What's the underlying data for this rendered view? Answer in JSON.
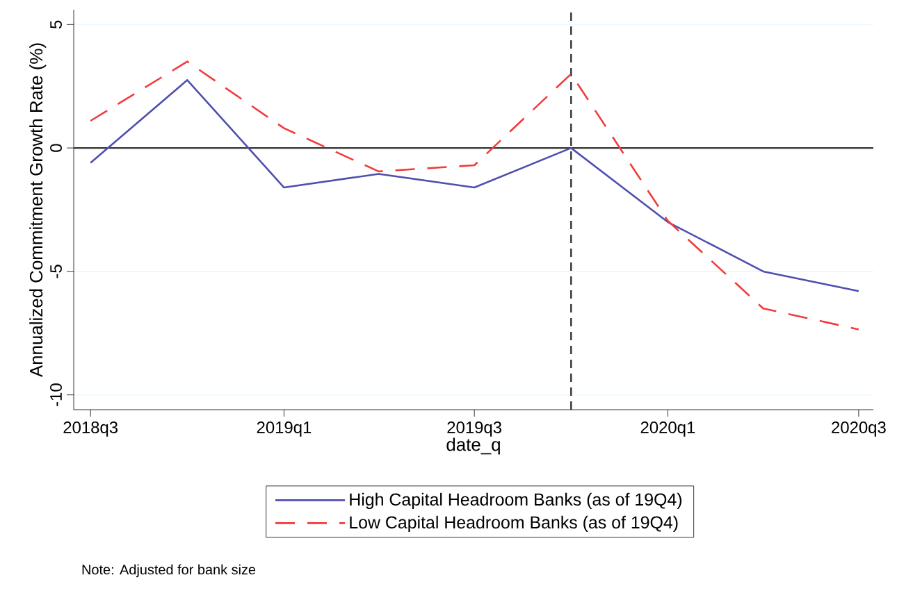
{
  "chart_data": {
    "type": "line",
    "ylabel": "Annualized Commitment Growth Rate (%)",
    "xlabel": "date_q",
    "x": [
      "2018-07",
      "2018-10",
      "2019-01",
      "2019-04",
      "2019-07",
      "2019-10",
      "2020-01",
      "2020-04",
      "2020-07"
    ],
    "series": [
      {
        "name": "High Capital Headroom Banks (as of 19Q4)",
        "color": "#4f4fb0",
        "line_style": "solid",
        "values": [
          -0.6,
          2.75,
          -1.6,
          -1.05,
          -1.6,
          0,
          -3.0,
          -5.0,
          -5.8
        ]
      },
      {
        "name": "Low Capital Headroom Banks (as of 19Q4)",
        "color": "#f03c3c",
        "line_style": "dashed",
        "values": [
          1.1,
          3.5,
          0.8,
          -0.95,
          -0.7,
          3.0,
          -2.95,
          -6.5,
          -7.35
        ]
      }
    ],
    "xlim": [
      "2018-06-15",
      "2020-07-15"
    ],
    "ylim": [
      -10.6,
      5.6
    ],
    "xticks": [
      {
        "value": "2018-07",
        "label": "2018q3"
      },
      {
        "value": "2019-01",
        "label": "2019q1"
      },
      {
        "value": "2019-07",
        "label": "2019q3"
      },
      {
        "value": "2020-01",
        "label": "2020q1"
      },
      {
        "value": "2020-07",
        "label": "2020q3"
      }
    ],
    "yticks": [
      -10,
      -5,
      0,
      5
    ],
    "grid": "y",
    "legend": "bottom",
    "marker": "none",
    "ref_lines": [
      {
        "axis": "y",
        "value": 0,
        "color": "#333333",
        "line_style": "solid"
      },
      {
        "axis": "x",
        "value": "2019-10",
        "color": "#333333",
        "line_style": "dashed"
      }
    ],
    "annotations": [
      "Note: Adjusted for bank size"
    ]
  }
}
